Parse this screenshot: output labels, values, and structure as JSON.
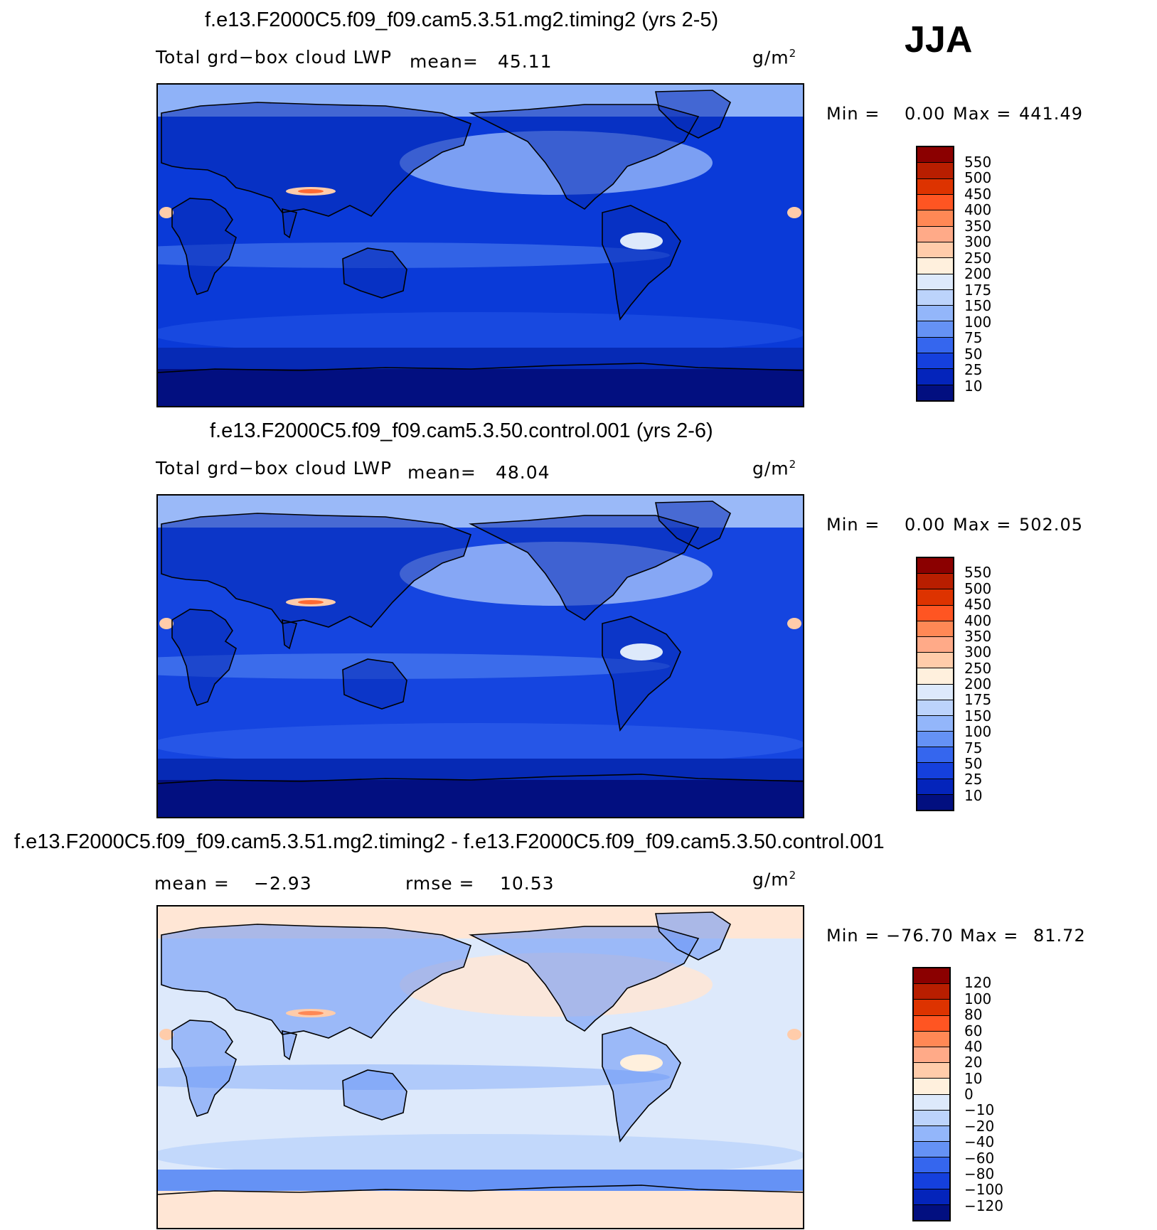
{
  "season": "JJA",
  "panels": [
    {
      "title": "f.e13.F2000C5.f09_f09.cam5.3.51.mg2.timing2 (yrs 2-5)",
      "variable": "Total grd−box cloud LWP",
      "stat1_label": "mean=",
      "stat1_value": "45.11",
      "stat2_label": "",
      "stat2_value": "",
      "units": "g/m",
      "units_exp": "2",
      "min_label": "Min =",
      "min_value": "0.00",
      "max_label": "Max =",
      "max_value": "441.49",
      "colorbar": {
        "labels": [
          "550",
          "500",
          "450",
          "400",
          "350",
          "300",
          "250",
          "200",
          "175",
          "150",
          "100",
          "75",
          "50",
          "25",
          "10"
        ],
        "colors": [
          "#8b0000",
          "#b81e00",
          "#dd3300",
          "#ff5522",
          "#ff8855",
          "#ffaa88",
          "#ffccaa",
          "#fff0dd",
          "#dde9fb",
          "#bcd3fb",
          "#93b6fa",
          "#6592f5",
          "#3566ee",
          "#1540dd",
          "#0424bb",
          "#020f80"
        ]
      },
      "map_colors": {
        "ocean": "#0a3ad8",
        "high": "#1b4ee2",
        "mid": "#4d7ff0",
        "light": "#8fb2f8",
        "pale": "#dde9fb",
        "dark": "#062ab5",
        "deep": "#020f80",
        "warm": "#ffccaa",
        "hot": "#ff6a33"
      }
    },
    {
      "title": "f.e13.F2000C5.f09_f09.cam5.3.50.control.001 (yrs 2-6)",
      "variable": "Total grd−box cloud LWP",
      "stat1_label": "mean=",
      "stat1_value": "48.04",
      "stat2_label": "",
      "stat2_value": "",
      "units": "g/m",
      "units_exp": "2",
      "min_label": "Min =",
      "min_value": "0.00",
      "max_label": "Max =",
      "max_value": "502.05",
      "colorbar": {
        "labels": [
          "550",
          "500",
          "450",
          "400",
          "350",
          "300",
          "250",
          "200",
          "175",
          "150",
          "100",
          "75",
          "50",
          "25",
          "10"
        ],
        "colors": [
          "#8b0000",
          "#b81e00",
          "#dd3300",
          "#ff5522",
          "#ff8855",
          "#ffaa88",
          "#ffccaa",
          "#fff0dd",
          "#dde9fb",
          "#bcd3fb",
          "#93b6fa",
          "#6592f5",
          "#3566ee",
          "#1540dd",
          "#0424bb",
          "#020f80"
        ]
      },
      "map_colors": {
        "ocean": "#1545e0",
        "high": "#2a5ae8",
        "mid": "#5587f2",
        "light": "#9ab9f8",
        "pale": "#dde9fb",
        "dark": "#062ab5",
        "deep": "#020f80",
        "warm": "#ffccaa",
        "hot": "#ff6a33"
      }
    },
    {
      "title": "f.e13.F2000C5.f09_f09.cam5.3.51.mg2.timing2 - f.e13.F2000C5.f09_f09.cam5.3.50.control.001",
      "variable": "",
      "stat1_label": "mean =",
      "stat1_value": "−2.93",
      "stat2_label": "rmse =",
      "stat2_value": "10.53",
      "units": "g/m",
      "units_exp": "2",
      "min_label": "Min =",
      "min_value": "−76.70",
      "max_label": "Max =",
      "max_value": "81.72",
      "colorbar": {
        "labels": [
          "120",
          "100",
          "80",
          "60",
          "40",
          "20",
          "10",
          "0",
          "−10",
          "−20",
          "−40",
          "−60",
          "−80",
          "−100",
          "−120"
        ],
        "colors": [
          "#8b0000",
          "#b81e00",
          "#dd3300",
          "#ff5522",
          "#ff8855",
          "#ffaa88",
          "#ffccaa",
          "#fff0dd",
          "#dde9fb",
          "#bcd3fb",
          "#93b6fa",
          "#6592f5",
          "#3566ee",
          "#1540dd",
          "#0424bb",
          "#020f80"
        ]
      },
      "map_colors": {
        "ocean": "#dde9fb",
        "high": "#bcd3fb",
        "mid": "#93b6fa",
        "light": "#ffe6d5",
        "pale": "#fff0dd",
        "dark": "#6592f5",
        "deep": "#ffe6d5",
        "warm": "#ffccaa",
        "hot": "#ff8855"
      }
    }
  ]
}
